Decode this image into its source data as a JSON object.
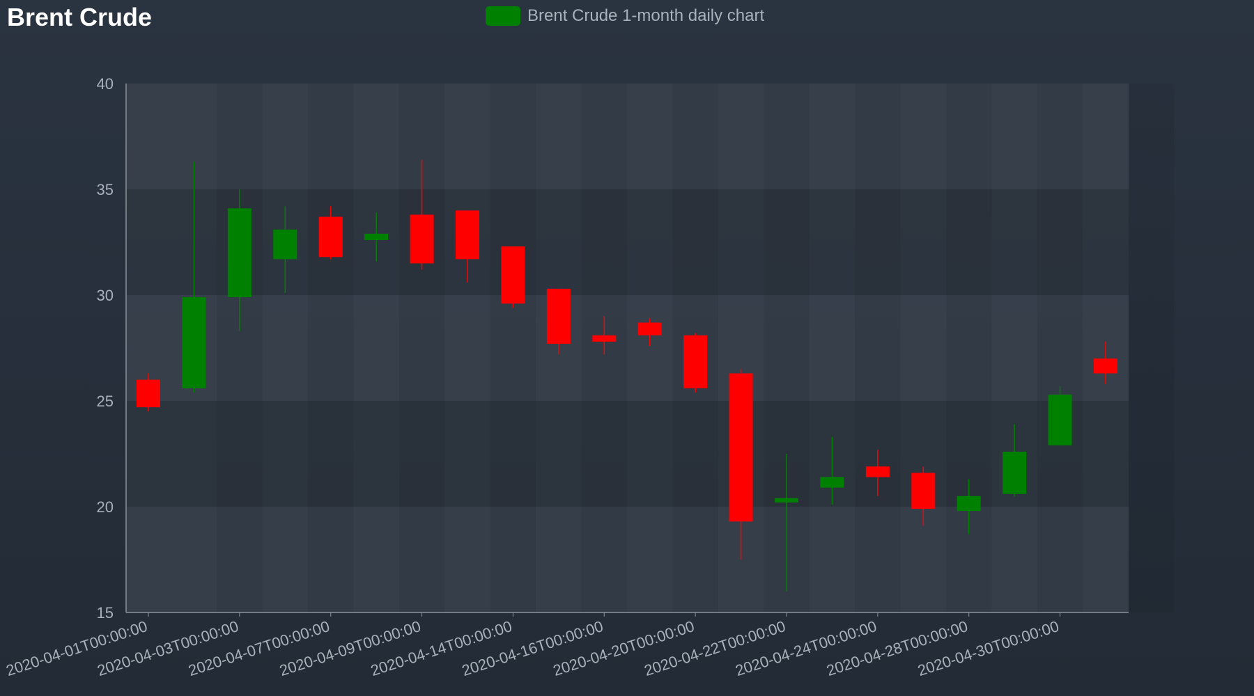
{
  "title": "Brent Crude",
  "legend": {
    "label": "Brent Crude 1-month daily chart",
    "color": "#008000"
  },
  "colors": {
    "up": "#008000",
    "down": "#ff0000",
    "axis": "#8a929c",
    "text": "#a9b1bb"
  },
  "chart_data": {
    "type": "candlestick",
    "title": "Brent Crude",
    "series_name": "Brent Crude 1-month daily chart",
    "ylim": [
      15,
      40
    ],
    "y_ticks": [
      15,
      20,
      25,
      30,
      35,
      40
    ],
    "x_tick_labels": [
      "2020-04-01T00:00:00",
      "2020-04-03T00:00:00",
      "2020-04-07T00:00:00",
      "2020-04-09T00:00:00",
      "2020-04-14T00:00:00",
      "2020-04-16T00:00:00",
      "2020-04-20T00:00:00",
      "2020-04-22T00:00:00",
      "2020-04-24T00:00:00",
      "2020-04-28T00:00:00",
      "2020-04-30T00:00:00"
    ],
    "candles": [
      {
        "open": 26.0,
        "high": 26.3,
        "low": 24.5,
        "close": 24.7
      },
      {
        "open": 25.6,
        "high": 36.3,
        "low": 25.4,
        "close": 29.9
      },
      {
        "open": 29.9,
        "high": 35.0,
        "low": 28.3,
        "close": 34.1
      },
      {
        "open": 31.7,
        "high": 34.2,
        "low": 30.1,
        "close": 33.1
      },
      {
        "open": 33.7,
        "high": 34.2,
        "low": 31.7,
        "close": 31.8
      },
      {
        "open": 32.6,
        "high": 33.9,
        "low": 31.6,
        "close": 32.9
      },
      {
        "open": 33.8,
        "high": 36.4,
        "low": 31.2,
        "close": 31.5
      },
      {
        "open": 34.0,
        "high": 34.0,
        "low": 30.6,
        "close": 31.7
      },
      {
        "open": 32.3,
        "high": 32.3,
        "low": 29.4,
        "close": 29.6
      },
      {
        "open": 30.3,
        "high": 30.3,
        "low": 27.2,
        "close": 27.7
      },
      {
        "open": 28.1,
        "high": 29.0,
        "low": 27.2,
        "close": 27.8
      },
      {
        "open": 28.7,
        "high": 28.9,
        "low": 27.6,
        "close": 28.1
      },
      {
        "open": 28.1,
        "high": 28.2,
        "low": 25.4,
        "close": 25.6
      },
      {
        "open": 26.3,
        "high": 26.5,
        "low": 17.5,
        "close": 19.3
      },
      {
        "open": 20.2,
        "high": 22.5,
        "low": 16.0,
        "close": 20.4
      },
      {
        "open": 20.9,
        "high": 23.3,
        "low": 20.1,
        "close": 21.4
      },
      {
        "open": 21.9,
        "high": 22.7,
        "low": 20.5,
        "close": 21.4
      },
      {
        "open": 21.6,
        "high": 21.9,
        "low": 19.1,
        "close": 19.9
      },
      {
        "open": 19.8,
        "high": 21.3,
        "low": 18.7,
        "close": 20.5
      },
      {
        "open": 20.6,
        "high": 23.9,
        "low": 20.5,
        "close": 22.6
      },
      {
        "open": 22.9,
        "high": 25.7,
        "low": 22.9,
        "close": 25.3
      },
      {
        "open": 27.0,
        "high": 27.8,
        "low": 25.8,
        "close": 26.3
      }
    ]
  }
}
